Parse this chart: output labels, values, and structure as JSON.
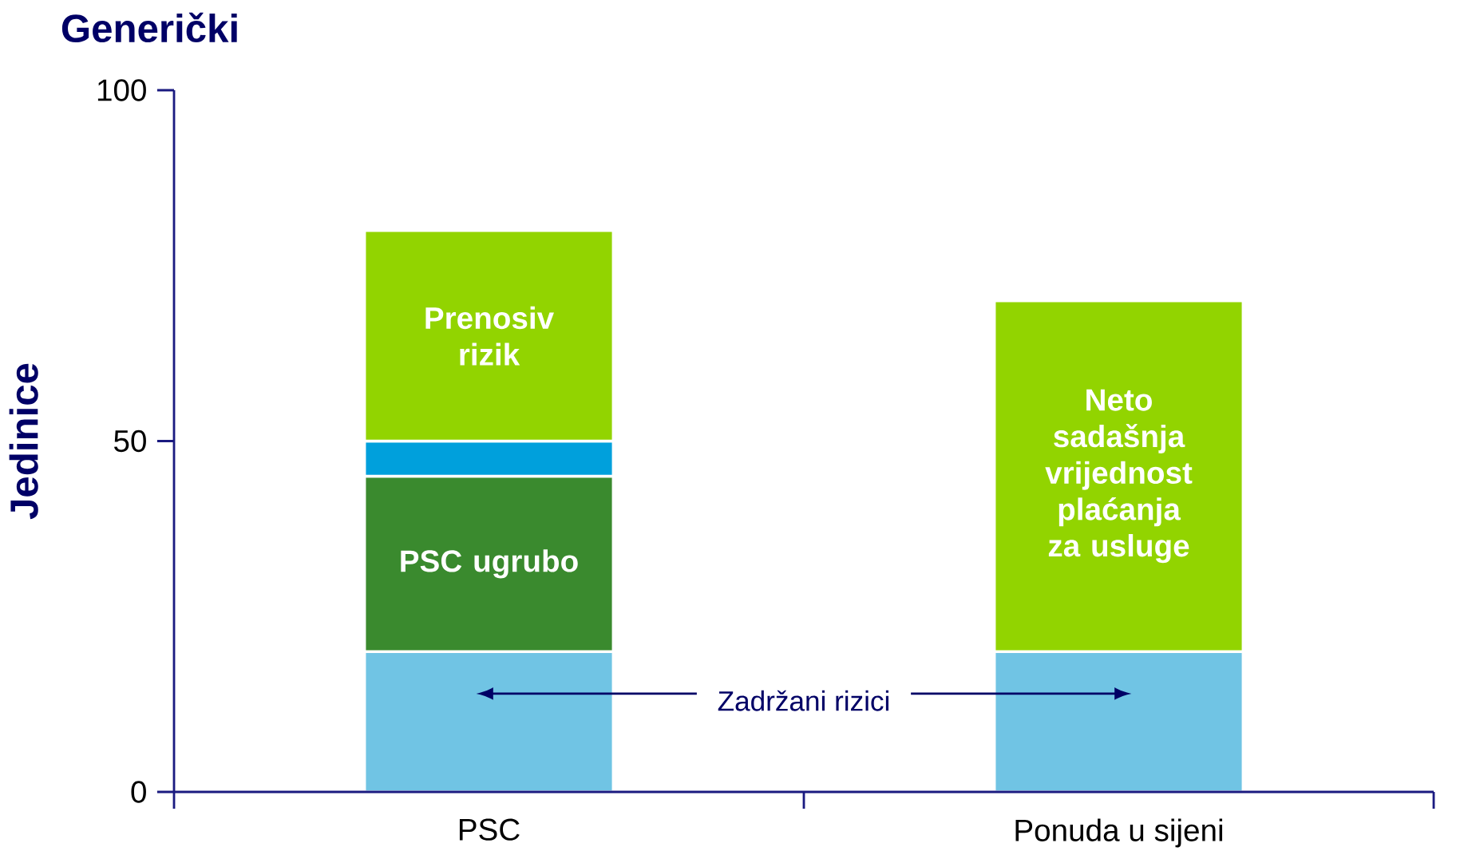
{
  "chart_data": {
    "type": "bar",
    "stacked": true,
    "title": "Generički",
    "ylabel": "Jedinice",
    "categories": [
      "PSC",
      "Ponuda u sijeni"
    ],
    "ylim": [
      0,
      100
    ],
    "yticks": [
      0,
      50,
      100
    ],
    "grid": false,
    "series": [
      {
        "name": "Zadržani rizici",
        "color": "#70c4e4",
        "values": [
          20,
          20
        ]
      },
      {
        "name": "PSC ugrubo",
        "color": "#3a8a2e",
        "values": [
          25,
          null
        ]
      },
      {
        "color": "#00a0dc",
        "values": [
          5,
          null
        ]
      },
      {
        "name": "Prenosiv rizik",
        "color": "#92d400",
        "values": [
          30,
          null
        ]
      },
      {
        "name": "Neto sadašnja vrijednost plaćanja za usluge",
        "color": "#92d400",
        "values": [
          null,
          50
        ]
      }
    ]
  }
}
